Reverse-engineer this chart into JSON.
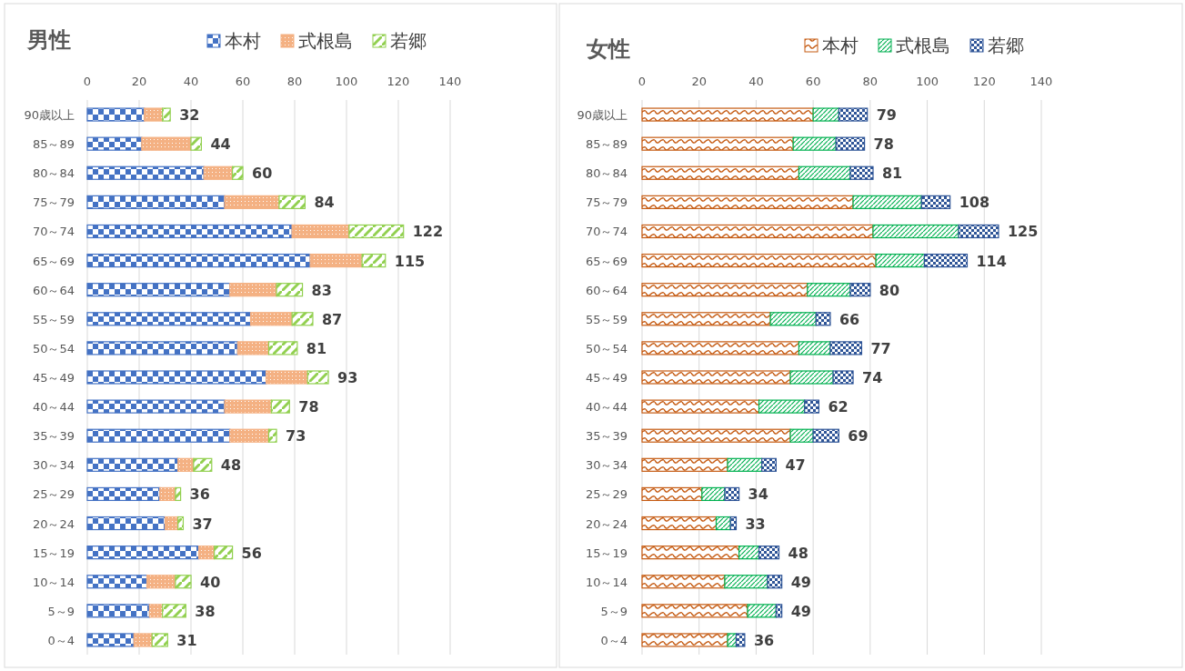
{
  "chart_data": [
    {
      "type": "bar",
      "orientation": "horizontal",
      "stacked": true,
      "title": "男性",
      "legend": "top",
      "grid": "x",
      "xlim": [
        0,
        140
      ],
      "xticks": [
        0,
        20,
        40,
        60,
        80,
        100,
        120,
        140
      ],
      "categories": [
        "90歳以上",
        "85～89",
        "80～84",
        "75～79",
        "70～74",
        "65～69",
        "60～64",
        "55～59",
        "50～54",
        "45～49",
        "40～44",
        "35～39",
        "30～34",
        "25～29",
        "20～24",
        "15～19",
        "10～14",
        "5～9",
        "0～4"
      ],
      "series": [
        {
          "name": "本村",
          "color": "#4472c4",
          "values": [
            22,
            21,
            45,
            53,
            79,
            86,
            55,
            63,
            58,
            69,
            53,
            55,
            35,
            28,
            30,
            43,
            23,
            24,
            18
          ]
        },
        {
          "name": "式根島",
          "color": "#f4b183",
          "values": [
            7,
            19,
            11,
            21,
            22,
            20,
            18,
            16,
            12,
            16,
            18,
            15,
            6,
            6,
            5,
            6,
            11,
            5,
            7
          ]
        },
        {
          "name": "若郷",
          "color": "#92d050",
          "values": [
            3,
            4,
            4,
            10,
            21,
            9,
            10,
            8,
            11,
            8,
            7,
            3,
            7,
            2,
            2,
            7,
            6,
            9,
            6
          ]
        }
      ],
      "totals": [
        "32",
        "44",
        "60",
        "84",
        "122",
        "115",
        "83",
        "87",
        "81",
        "93",
        "78",
        "73",
        "48",
        "36",
        "37",
        "56",
        "40",
        "38",
        "31"
      ]
    },
    {
      "type": "bar",
      "orientation": "horizontal",
      "stacked": true,
      "title": "女性",
      "legend": "top",
      "grid": "x",
      "xlim": [
        0,
        140
      ],
      "xticks": [
        0,
        20,
        40,
        60,
        80,
        100,
        120,
        140
      ],
      "categories": [
        "90歳以上",
        "85～89",
        "80～84",
        "75～79",
        "70～74",
        "65～69",
        "60～64",
        "55～59",
        "50～54",
        "45～49",
        "40～44",
        "35～39",
        "30～34",
        "25～29",
        "20～24",
        "15～19",
        "10～14",
        "5～9",
        "0～4"
      ],
      "series": [
        {
          "name": "本村",
          "color": "#c55a11",
          "values": [
            60,
            53,
            55,
            74,
            81,
            82,
            58,
            45,
            55,
            52,
            41,
            52,
            30,
            21,
            26,
            34,
            29,
            37,
            30
          ]
        },
        {
          "name": "式根島",
          "color": "#00b050",
          "values": [
            9,
            15,
            18,
            24,
            30,
            17,
            15,
            16,
            11,
            15,
            16,
            8,
            12,
            8,
            5,
            7,
            15,
            10,
            3
          ]
        },
        {
          "name": "若郷",
          "color": "#2f5597",
          "values": [
            10,
            10,
            8,
            10,
            14,
            15,
            7,
            5,
            11,
            7,
            5,
            9,
            5,
            5,
            2,
            7,
            5,
            2,
            3
          ]
        }
      ],
      "totals": [
        "79",
        "78",
        "81",
        "108",
        "125",
        "114",
        "80",
        "66",
        "77",
        "74",
        "62",
        "69",
        "47",
        "34",
        "33",
        "48",
        "49",
        "49",
        "36"
      ]
    }
  ]
}
